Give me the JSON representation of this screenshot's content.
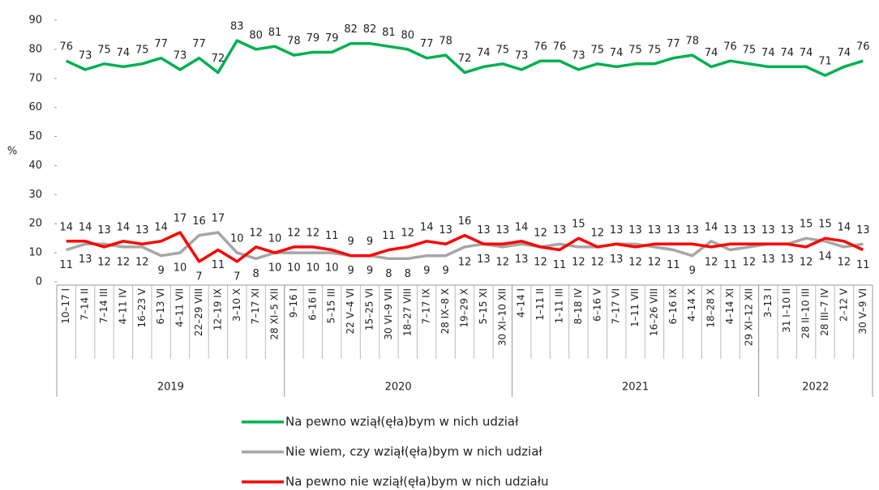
{
  "chart_data": {
    "type": "line",
    "y_label": "%",
    "categories": [
      "10–17 I",
      "7–14 II",
      "7–14 III",
      "4–11 IV",
      "16–23 V",
      "6–13 VI",
      "4–11 VII",
      "22–29 VIII",
      "12–19 IX",
      "3–10 X",
      "7–17 XI",
      "28 XI–5 XII",
      "9–16 I",
      "6–16 II",
      "5–15 III",
      "22 V–4 VI",
      "15–25 VI",
      "30 VI–9 VII",
      "18–27 VIII",
      "7–17 IX",
      "28 IX–8 X",
      "19–29 X",
      "5–15 XI",
      "30 XI–10 XII",
      "4–14 I",
      "1–11 II",
      "1–11 III",
      "8–18 IV",
      "6–16 V",
      "7–17 VI",
      "1–11 VII",
      "16–26 VIII",
      "6–16 IX",
      "4–14 X",
      "18–28 X",
      "4–14 XI",
      "29 XI–12 XII",
      "3–13 I",
      "31 I–10 II",
      "28 II–10 III",
      "28 III–7 IV",
      "2–12 V",
      "30 V–9 VI"
    ],
    "x_groups": [
      {
        "label": "2019",
        "size": 12
      },
      {
        "label": "2020",
        "size": 12
      },
      {
        "label": "2021",
        "size": 13
      },
      {
        "label": "2022",
        "size": 6
      }
    ],
    "series": [
      {
        "name": "Na pewno wziął(ęła)bym w nich udział",
        "color": "#00b050",
        "values": [
          76,
          73,
          75,
          74,
          75,
          77,
          73,
          77,
          72,
          83,
          80,
          81,
          78,
          79,
          79,
          82,
          82,
          81,
          80,
          77,
          78,
          72,
          74,
          75,
          73,
          76,
          76,
          73,
          75,
          74,
          75,
          75,
          77,
          78,
          74,
          76,
          75,
          74,
          74,
          74,
          71,
          74,
          76
        ]
      },
      {
        "name": "Nie wiem, czy wziął(ęła)bym w nich udział",
        "color": "#a6a6a6",
        "values": [
          11,
          13,
          13,
          12,
          12,
          9,
          10,
          16,
          17,
          10,
          8,
          10,
          10,
          10,
          10,
          9,
          9,
          8,
          8,
          9,
          9,
          12,
          13,
          12,
          13,
          12,
          13,
          12,
          12,
          13,
          13,
          12,
          11,
          9,
          14,
          11,
          12,
          13,
          13,
          15,
          14,
          12,
          13
        ]
      },
      {
        "name": "Na pewno nie wziął(ęła)bym w nich udziału",
        "color": "#ff0000",
        "values": [
          14,
          14,
          12,
          14,
          13,
          14,
          17,
          7,
          11,
          7,
          12,
          10,
          12,
          12,
          11,
          9,
          9,
          11,
          12,
          14,
          13,
          16,
          13,
          13,
          14,
          12,
          11,
          15,
          12,
          13,
          12,
          13,
          13,
          13,
          12,
          13,
          13,
          13,
          13,
          12,
          15,
          14,
          11
        ]
      }
    ],
    "ylim": [
      0,
      90
    ],
    "yticks": [
      0,
      10,
      20,
      30,
      40,
      50,
      60,
      70,
      80,
      90
    ]
  }
}
